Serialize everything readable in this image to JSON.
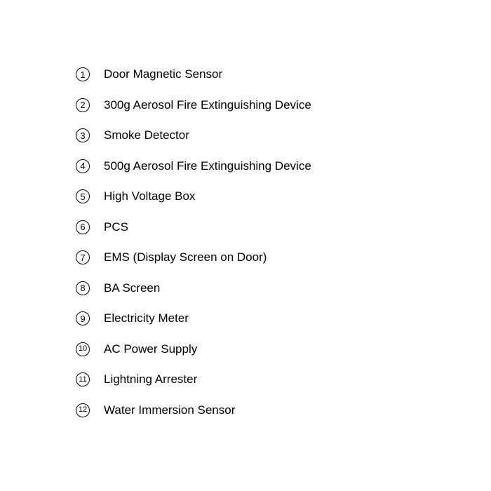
{
  "legend": {
    "items": [
      {
        "number": "1",
        "label": "Door Magnetic Sensor"
      },
      {
        "number": "2",
        "label": "300g Aerosol Fire Extinguishing Device"
      },
      {
        "number": "3",
        "label": "Smoke Detector"
      },
      {
        "number": "4",
        "label": "500g Aerosol Fire Extinguishing Device"
      },
      {
        "number": "5",
        "label": "High Voltage Box"
      },
      {
        "number": "6",
        "label": "PCS"
      },
      {
        "number": "7",
        "label": "EMS (Display Screen on Door)"
      },
      {
        "number": "8",
        "label": "BA Screen"
      },
      {
        "number": "9",
        "label": "Electricity Meter"
      },
      {
        "number": "10",
        "label": "AC Power Supply"
      },
      {
        "number": "11",
        "label": "Lightning Arrester"
      },
      {
        "number": "12",
        "label": "Water Immersion Sensor"
      }
    ],
    "style": {
      "font_family": "Arial",
      "number_fontsize": 13,
      "number_fontsize_doubledigit": 11,
      "label_fontsize": 17,
      "text_color": "#000000",
      "background_color": "#ffffff",
      "badge_border_color": "#000000",
      "badge_border_width": 1.4,
      "badge_diameter": 20,
      "row_gap": 21.5,
      "badge_label_gap": 20
    }
  }
}
